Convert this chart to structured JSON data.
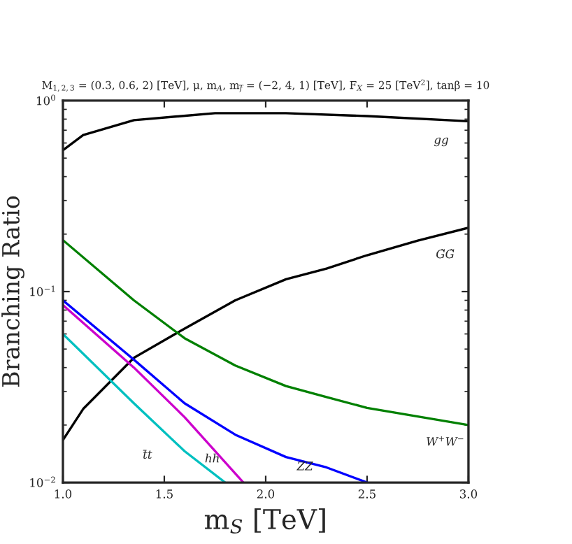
{
  "chart_data": {
    "type": "line",
    "title": "M$_{1,2,3}$ = (0.3, 0.6, 2) [TeV], μ, m$_{A}$, m$_{f̃}$ = (−2, 4, 1) [TeV], F$_{X}$ = 25 [TeV$^{2}$], tanβ = 10",
    "xlabel": "m$_{S}$ [TeV]",
    "ylabel": "Branching Ratio",
    "log": "y",
    "xlim": [
      1.0,
      3.0
    ],
    "xticks": [
      {
        "value": 1.0,
        "label": "1.0"
      },
      1.5,
      {
        "value": 2.0,
        "label": "2.0"
      },
      2.5,
      {
        "value": 3.0,
        "label": "3.0"
      }
    ],
    "ylim": [
      0.01,
      1
    ],
    "yticks": [
      {
        "value": 0.01,
        "label": "10$^{−2}$"
      },
      {
        "value": 0.1,
        "label": "10$^{−1}$"
      },
      {
        "value": 1,
        "label": "10$^{0}$"
      }
    ],
    "grid": false,
    "legend": false,
    "marker": "none",
    "line_style": "solid",
    "series": [
      {
        "name": "gg",
        "color": "#000000",
        "x": [
          1.0,
          1.1,
          1.35,
          1.75,
          2.1,
          2.5,
          3.0
        ],
        "values": [
          0.55,
          0.66,
          0.79,
          0.86,
          0.86,
          0.83,
          0.78
        ]
      },
      {
        "name": "G̃G̃",
        "color": "#000000",
        "x": [
          1.0,
          1.1,
          1.35,
          1.6,
          1.85,
          2.1,
          2.3,
          2.5,
          2.75,
          3.0
        ],
        "values": [
          0.0167,
          0.0243,
          0.045,
          0.064,
          0.09,
          0.116,
          0.132,
          0.155,
          0.185,
          0.216
        ]
      },
      {
        "name": "W$^{+}$W$^{−}$",
        "color": "#008000",
        "x": [
          1.0,
          1.35,
          1.6,
          1.85,
          2.1,
          2.3,
          2.5,
          3.0
        ],
        "values": [
          0.186,
          0.09,
          0.057,
          0.041,
          0.032,
          0.028,
          0.0246,
          0.02
        ]
      },
      {
        "name": "ZZ",
        "color": "#0000ff",
        "x": [
          1.0,
          1.35,
          1.6,
          1.85,
          2.1,
          2.3,
          2.5
        ],
        "values": [
          0.09,
          0.044,
          0.026,
          0.0178,
          0.0136,
          0.012,
          0.01
        ]
      },
      {
        "name": "hh",
        "color": "#cc00cc",
        "x": [
          1.0,
          1.35,
          1.6,
          1.89
        ],
        "values": [
          0.085,
          0.04,
          0.022,
          0.01
        ]
      },
      {
        "name": "t̄t",
        "color": "#00c0c0",
        "x": [
          1.0,
          1.35,
          1.6,
          1.8
        ],
        "values": [
          0.06,
          0.026,
          0.0146,
          0.01
        ]
      }
    ]
  }
}
